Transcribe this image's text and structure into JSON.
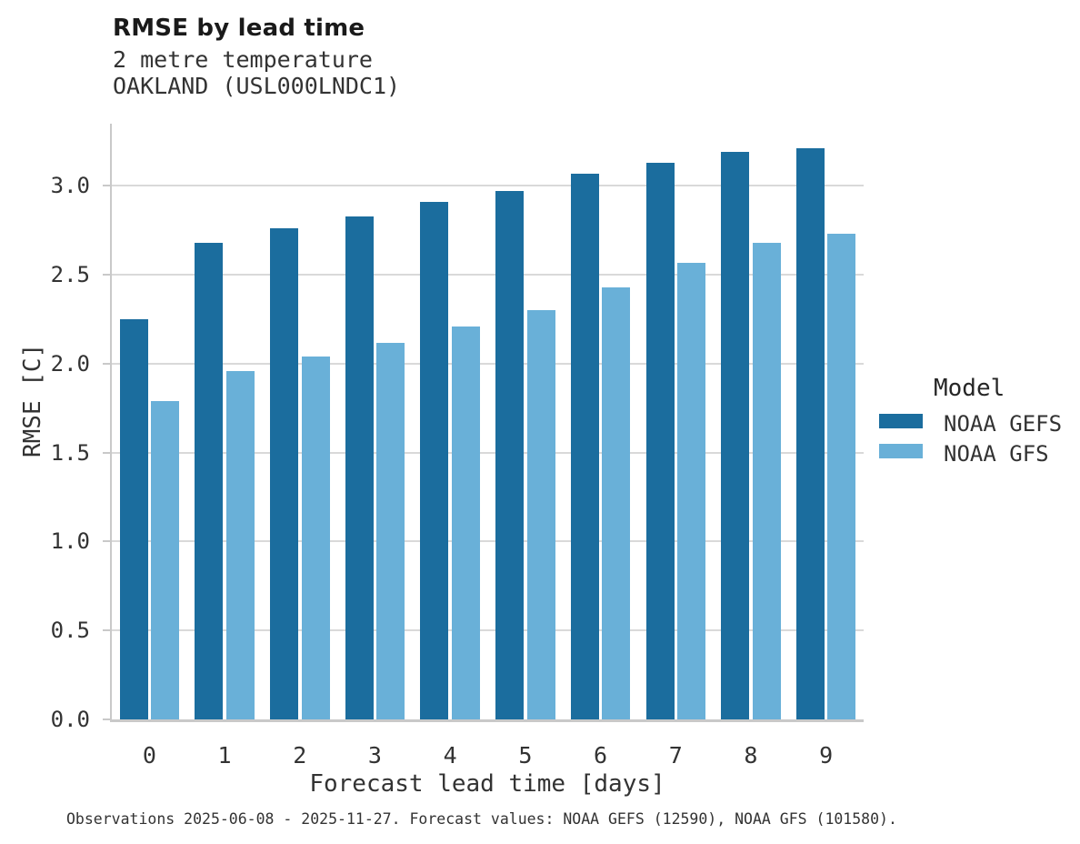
{
  "header": {
    "title": "RMSE by lead time",
    "subtitle_line1": "2 metre temperature",
    "subtitle_line2": "OAKLAND (USL000LNDC1)"
  },
  "chart_data": {
    "type": "bar",
    "title": "RMSE by lead time",
    "subtitle": [
      "2 metre temperature",
      "OAKLAND (USL000LNDC1)"
    ],
    "categories": [
      "0",
      "1",
      "2",
      "3",
      "4",
      "5",
      "6",
      "7",
      "8",
      "9"
    ],
    "series": [
      {
        "name": "NOAA GEFS",
        "color": "#1b6d9e",
        "values": [
          2.25,
          2.68,
          2.76,
          2.83,
          2.91,
          2.97,
          3.07,
          3.13,
          3.19,
          3.21
        ]
      },
      {
        "name": "NOAA GFS",
        "color": "#69b0d8",
        "values": [
          1.79,
          1.96,
          2.04,
          2.12,
          2.21,
          2.3,
          2.43,
          2.57,
          2.68,
          2.73
        ]
      }
    ],
    "xlabel": "Forecast lead time [days]",
    "ylabel": "RMSE [C]",
    "ylim": [
      0,
      3.35
    ],
    "yticks": [
      0.0,
      0.5,
      1.0,
      1.5,
      2.0,
      2.5,
      3.0
    ],
    "grid": "horizontal",
    "legend_title": "Model",
    "legend_position": "right"
  },
  "legend": {
    "title": "Model",
    "items": [
      {
        "label": "NOAA GEFS",
        "color": "#1b6d9e"
      },
      {
        "label": "NOAA GFS",
        "color": "#69b0d8"
      }
    ]
  },
  "footer": {
    "text": "Observations 2025-06-08 - 2025-11-27. Forecast values: NOAA GEFS (12590), NOAA GFS (101580)."
  },
  "colors": {
    "gefs": "#1b6d9e",
    "gfs": "#69b0d8",
    "gridline": "#d9d9d9",
    "spine": "#c9c9c9",
    "title_text": "#1a1a1a",
    "body_text": "#333333",
    "background": "#ffffff"
  }
}
